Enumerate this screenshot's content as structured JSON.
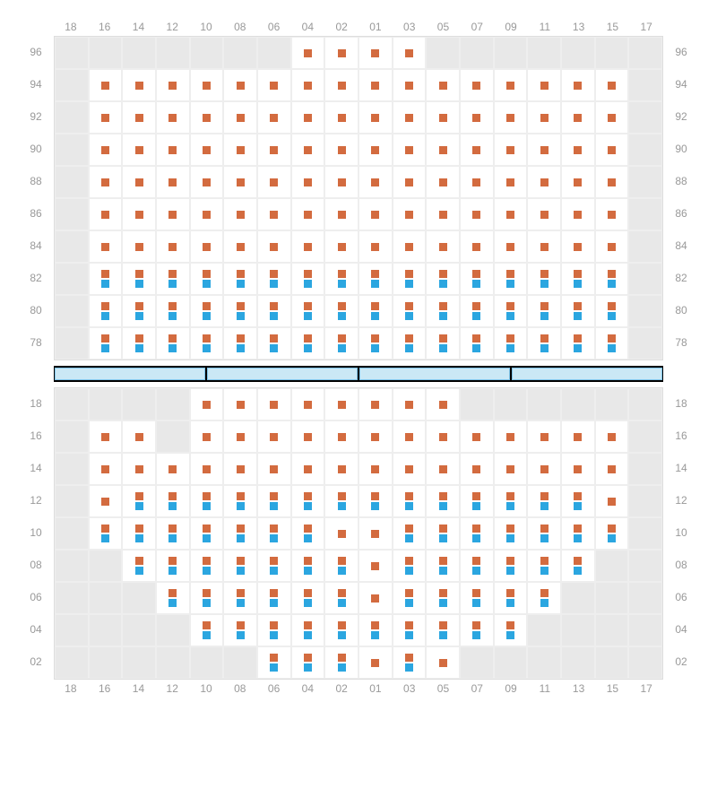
{
  "cols": [
    "18",
    "16",
    "14",
    "12",
    "10",
    "08",
    "06",
    "04",
    "02",
    "01",
    "03",
    "05",
    "07",
    "09",
    "11",
    "13",
    "15",
    "17"
  ],
  "upper": {
    "rows": [
      "96",
      "94",
      "92",
      "90",
      "88",
      "86",
      "84",
      "82",
      "80",
      "78"
    ],
    "cells": [
      [
        "e",
        "e",
        "e",
        "e",
        "e",
        "e",
        "e",
        "o",
        "o",
        "o",
        "o",
        "e",
        "e",
        "e",
        "e",
        "e",
        "e",
        "e"
      ],
      [
        "e",
        "o",
        "o",
        "o",
        "o",
        "o",
        "o",
        "o",
        "o",
        "o",
        "o",
        "o",
        "o",
        "o",
        "o",
        "o",
        "o",
        "e"
      ],
      [
        "e",
        "o",
        "o",
        "o",
        "o",
        "o",
        "o",
        "o",
        "o",
        "o",
        "o",
        "o",
        "o",
        "o",
        "o",
        "o",
        "o",
        "e"
      ],
      [
        "e",
        "o",
        "o",
        "o",
        "o",
        "o",
        "o",
        "o",
        "o",
        "o",
        "o",
        "o",
        "o",
        "o",
        "o",
        "o",
        "o",
        "e"
      ],
      [
        "e",
        "o",
        "o",
        "o",
        "o",
        "o",
        "o",
        "o",
        "o",
        "o",
        "o",
        "o",
        "o",
        "o",
        "o",
        "o",
        "o",
        "e"
      ],
      [
        "e",
        "o",
        "o",
        "o",
        "o",
        "o",
        "o",
        "o",
        "o",
        "o",
        "o",
        "o",
        "o",
        "o",
        "o",
        "o",
        "o",
        "e"
      ],
      [
        "e",
        "o",
        "o",
        "o",
        "o",
        "o",
        "o",
        "o",
        "o",
        "o",
        "o",
        "o",
        "o",
        "o",
        "o",
        "o",
        "o",
        "e"
      ],
      [
        "e",
        "ob",
        "ob",
        "ob",
        "ob",
        "ob",
        "ob",
        "ob",
        "ob",
        "ob",
        "ob",
        "ob",
        "ob",
        "ob",
        "ob",
        "ob",
        "ob",
        "e"
      ],
      [
        "e",
        "ob",
        "ob",
        "ob",
        "ob",
        "ob",
        "ob",
        "ob",
        "ob",
        "ob",
        "ob",
        "ob",
        "ob",
        "ob",
        "ob",
        "ob",
        "ob",
        "e"
      ],
      [
        "e",
        "ob",
        "ob",
        "ob",
        "ob",
        "ob",
        "ob",
        "ob",
        "ob",
        "ob",
        "ob",
        "ob",
        "ob",
        "ob",
        "ob",
        "ob",
        "ob",
        "e"
      ]
    ]
  },
  "lower": {
    "rows": [
      "18",
      "16",
      "14",
      "12",
      "10",
      "08",
      "06",
      "04",
      "02"
    ],
    "cells": [
      [
        "e",
        "e",
        "e",
        "e",
        "o",
        "o",
        "o",
        "o",
        "o",
        "o",
        "o",
        "o",
        "e",
        "e",
        "e",
        "e",
        "e",
        "e"
      ],
      [
        "e",
        "o",
        "o",
        "e",
        "o",
        "o",
        "o",
        "o",
        "o",
        "o",
        "o",
        "o",
        "o",
        "o",
        "o",
        "o",
        "o",
        "e"
      ],
      [
        "e",
        "o",
        "o",
        "o",
        "o",
        "o",
        "o",
        "o",
        "o",
        "o",
        "o",
        "o",
        "o",
        "o",
        "o",
        "o",
        "o",
        "e"
      ],
      [
        "e",
        "o",
        "ob",
        "ob",
        "ob",
        "ob",
        "ob",
        "ob",
        "ob",
        "ob",
        "ob",
        "ob",
        "ob",
        "ob",
        "ob",
        "ob",
        "o",
        "e"
      ],
      [
        "e",
        "ob",
        "ob",
        "ob",
        "ob",
        "ob",
        "ob",
        "ob",
        "o",
        "o",
        "ob",
        "ob",
        "ob",
        "ob",
        "ob",
        "ob",
        "ob",
        "e"
      ],
      [
        "e",
        "e",
        "ob",
        "ob",
        "ob",
        "ob",
        "ob",
        "ob",
        "ob",
        "o",
        "ob",
        "ob",
        "ob",
        "ob",
        "ob",
        "ob",
        "e",
        "e"
      ],
      [
        "e",
        "e",
        "e",
        "ob",
        "ob",
        "ob",
        "ob",
        "ob",
        "ob",
        "o",
        "ob",
        "ob",
        "ob",
        "ob",
        "ob",
        "e",
        "e",
        "e"
      ],
      [
        "e",
        "e",
        "e",
        "e",
        "ob",
        "ob",
        "ob",
        "ob",
        "ob",
        "ob",
        "ob",
        "ob",
        "ob",
        "ob",
        "e",
        "e",
        "e",
        "e"
      ],
      [
        "e",
        "e",
        "e",
        "e",
        "e",
        "e",
        "ob",
        "ob",
        "ob",
        "o",
        "ob",
        "o",
        "e",
        "e",
        "e",
        "e",
        "e",
        "e"
      ]
    ]
  },
  "colors": {
    "orange": "#d36b3f",
    "blue": "#2ba6e0",
    "empty": "#e8e8e8",
    "dividerBg": "#000",
    "dividerCell": "#cae8f5"
  },
  "dividerSegments": 4,
  "type": "seating-chart"
}
